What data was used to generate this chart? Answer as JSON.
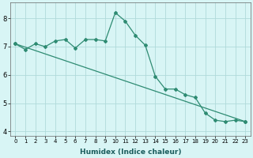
{
  "xlabel": "Humidex (Indice chaleur)",
  "x": [
    0,
    1,
    2,
    3,
    4,
    5,
    6,
    7,
    8,
    9,
    10,
    11,
    12,
    13,
    14,
    15,
    16,
    17,
    18,
    19,
    20,
    21,
    22,
    23
  ],
  "line1": [
    7.1,
    6.9,
    7.1,
    7.0,
    7.2,
    7.25,
    6.95,
    7.25,
    7.25,
    7.2,
    8.2,
    7.9,
    7.4,
    7.05,
    5.95,
    5.5,
    5.5,
    5.3,
    5.2,
    4.65,
    4.4,
    4.35,
    4.4,
    4.35
  ],
  "straight_line_x": [
    0,
    23
  ],
  "straight_line_y": [
    7.1,
    4.35
  ],
  "line_color": "#2e8b72",
  "bg_color": "#d8f5f5",
  "grid_color": "#b0dada",
  "ylim": [
    3.85,
    8.55
  ],
  "xlim": [
    -0.5,
    23.5
  ],
  "yticks": [
    4,
    5,
    6,
    7,
    8
  ],
  "xticks": [
    0,
    1,
    2,
    3,
    4,
    5,
    6,
    7,
    8,
    9,
    10,
    11,
    12,
    13,
    14,
    15,
    16,
    17,
    18,
    19,
    20,
    21,
    22,
    23
  ],
  "xlabel_fontsize": 6.5,
  "xlabel_fontweight": "bold",
  "ytick_fontsize": 6,
  "xtick_fontsize": 5
}
